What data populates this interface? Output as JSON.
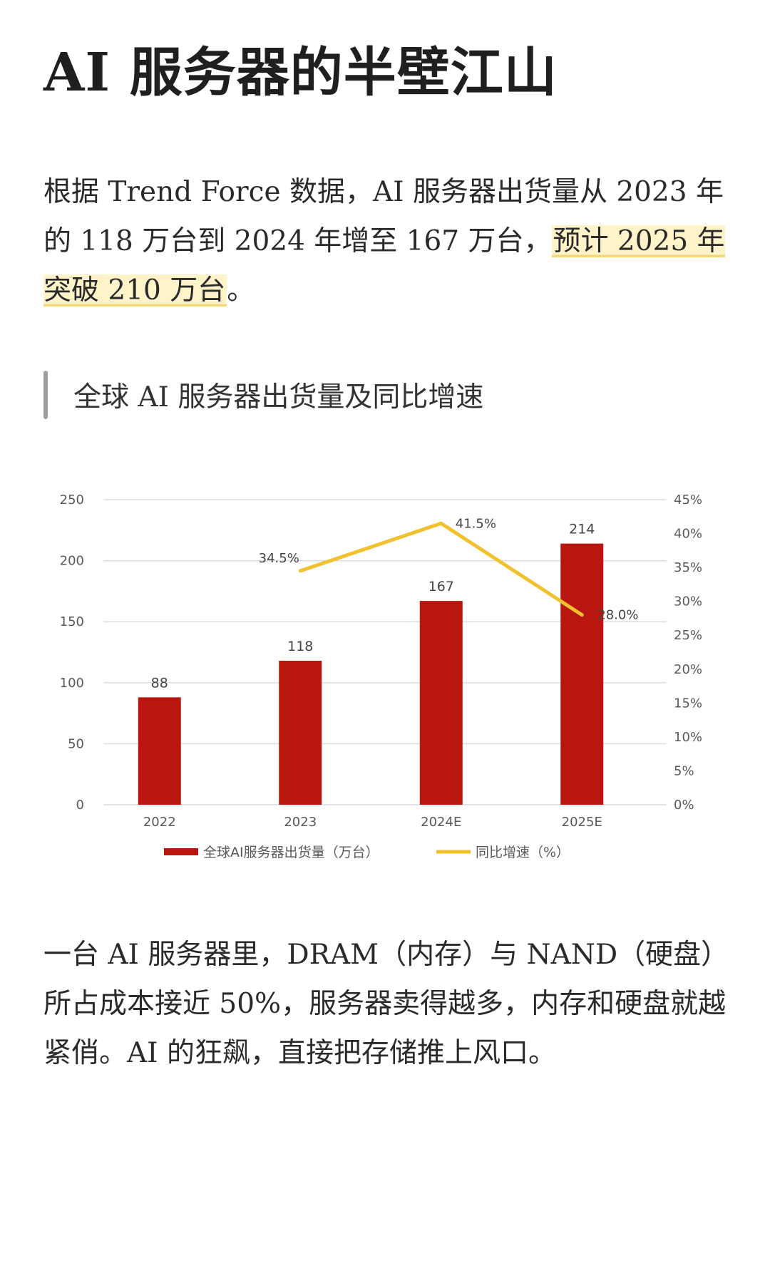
{
  "article": {
    "title": "AI 服务器的半壁江山",
    "para1": {
      "text1": "根据 Trend Force 数据，AI 服务器出货量从 2023 年的 118 万台到 2024 年增至 167 万台，",
      "highlight": "预计 2025 年突破 210 万台",
      "text2": "。"
    },
    "section_heading": "全球 AI 服务器出货量及同比增速",
    "para2": "一台 AI 服务器里，DRAM（内存）与 NAND（硬盘）所占成本接近 50%，服务器卖得越多，内存和硬盘就越紧俏。AI 的狂飙，直接把存储推上风口。"
  },
  "colors": {
    "bar": "#b8160f",
    "line": "#f2c12e",
    "grid": "#dcdcdc",
    "highlight_bg": "#fff3c9",
    "highlight_underline": "#f1d77a"
  },
  "chart_data": {
    "type": "bar",
    "categories": [
      "2022",
      "2023",
      "2024E",
      "2025E"
    ],
    "series": [
      {
        "name": "全球AI服务器出货量（万台）",
        "type": "bar",
        "axis": "left",
        "values": [
          88,
          118,
          167,
          214
        ],
        "labels": [
          "88",
          "118",
          "167",
          "214"
        ]
      },
      {
        "name": "同比增速（%）",
        "type": "line",
        "axis": "right",
        "values": [
          null,
          34.5,
          41.5,
          28.0
        ],
        "labels": [
          "",
          "34.5%",
          "41.5%",
          "28.0%"
        ]
      }
    ],
    "y_left": {
      "ylim": [
        0,
        250
      ],
      "ticks": [
        0,
        50,
        100,
        150,
        200,
        250
      ],
      "tick_labels": [
        "0",
        "50",
        "100",
        "150",
        "200",
        "250"
      ]
    },
    "y_right": {
      "ylim": [
        0,
        45
      ],
      "ticks": [
        0,
        5,
        10,
        15,
        20,
        25,
        30,
        35,
        40,
        45
      ],
      "tick_labels": [
        "0%",
        "5%",
        "10%",
        "15%",
        "20%",
        "25%",
        "30%",
        "35%",
        "40%",
        "45%"
      ]
    },
    "grid": true,
    "legend_position": "bottom"
  }
}
